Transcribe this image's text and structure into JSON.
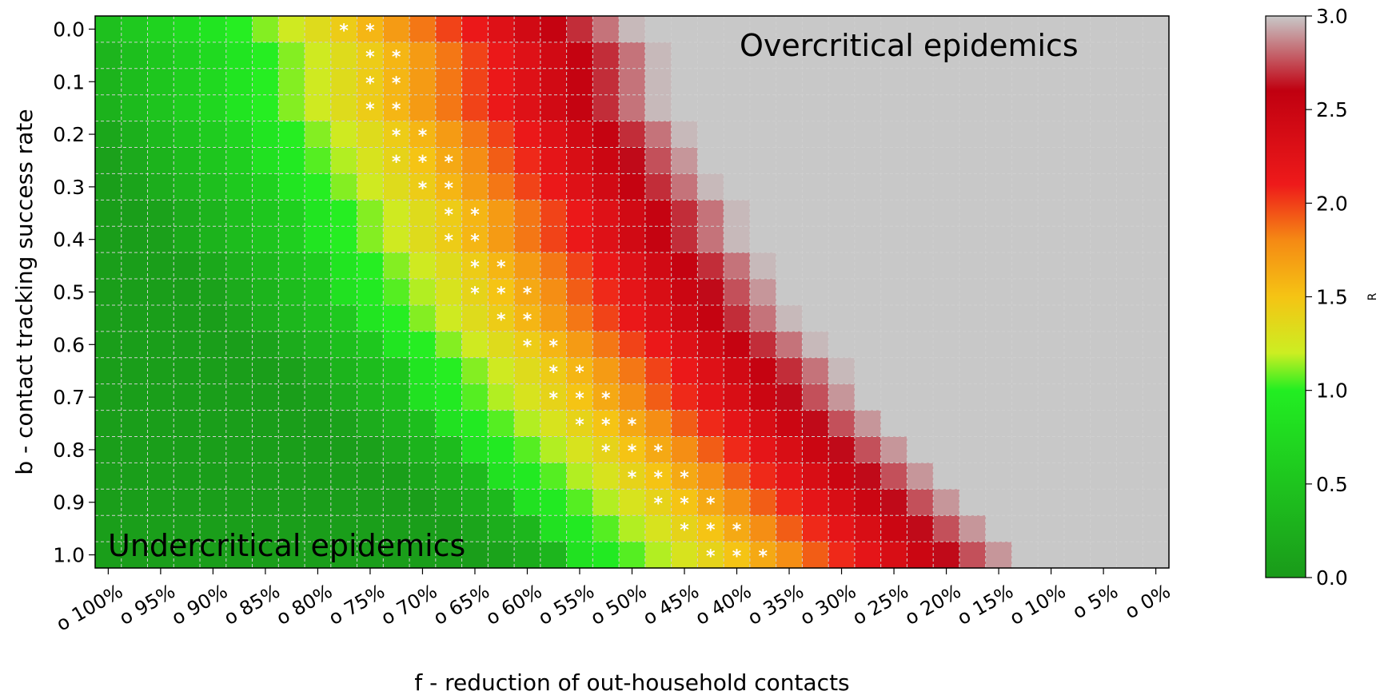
{
  "chart_data": {
    "type": "heatmap",
    "title": "",
    "xlabel": "f - reduction of out-household contacts",
    "ylabel": "b - contact tracking success rate",
    "x_tick_labels": [
      "o 100%",
      "o 95%",
      "o 90%",
      "o 85%",
      "o 80%",
      "o 75%",
      "o 70%",
      "o 65%",
      "o 60%",
      "o 55%",
      "o 50%",
      "o 45%",
      "o 40%",
      "o 35%",
      "o 30%",
      "o 25%",
      "o 20%",
      "o 15%",
      "o 10%",
      "o 5%",
      "o 0%"
    ],
    "x_values": [
      1.0,
      0.95,
      0.9,
      0.85,
      0.8,
      0.75,
      0.7,
      0.65,
      0.6,
      0.55,
      0.5,
      0.45,
      0.4,
      0.35,
      0.3,
      0.25,
      0.2,
      0.15,
      0.1,
      0.05,
      0.0
    ],
    "y_tick_labels": [
      "0.0",
      "0.1",
      "0.2",
      "0.3",
      "0.4",
      "0.5",
      "0.6",
      "0.7",
      "0.8",
      "0.9",
      "1.0"
    ],
    "y_values": [
      0.0,
      0.05,
      0.1,
      0.15,
      0.2,
      0.25,
      0.3,
      0.35,
      0.4,
      0.45,
      0.5,
      0.55,
      0.6,
      0.65,
      0.7,
      0.75,
      0.8,
      0.85,
      0.9,
      0.95,
      1.0
    ],
    "value_range": [
      0.0,
      3.0
    ],
    "colorbar": {
      "label": "R",
      "ticks": [
        "0.0",
        "0.5",
        "1.0",
        "1.5",
        "2.0",
        "2.5",
        "3.0"
      ],
      "colormap_stops": [
        {
          "value": 0.0,
          "color": "#1a9a1a"
        },
        {
          "value": 1.0,
          "color": "#22ee22"
        },
        {
          "value": 1.2,
          "color": "#ccee22"
        },
        {
          "value": 1.5,
          "color": "#f5c414"
        },
        {
          "value": 1.8,
          "color": "#f58a14"
        },
        {
          "value": 2.1,
          "color": "#ee1a1a"
        },
        {
          "value": 2.6,
          "color": "#c00010"
        },
        {
          "value": 3.0,
          "color": "#c8c8c8"
        }
      ]
    },
    "annotations": [
      {
        "text": "Overcritical epidemics",
        "position": "top-right"
      },
      {
        "text": "Undercritical epidemics",
        "position": "bottom-left"
      }
    ],
    "critical_marker": "*",
    "critical_cells": [
      [
        0,
        9
      ],
      [
        0,
        10
      ],
      [
        1,
        10
      ],
      [
        1,
        11
      ],
      [
        2,
        10
      ],
      [
        2,
        11
      ],
      [
        3,
        10
      ],
      [
        3,
        11
      ],
      [
        4,
        11
      ],
      [
        4,
        12
      ],
      [
        5,
        11
      ],
      [
        5,
        12
      ],
      [
        5,
        13
      ],
      [
        6,
        12
      ],
      [
        6,
        13
      ],
      [
        7,
        13
      ],
      [
        7,
        14
      ],
      [
        8,
        13
      ],
      [
        8,
        14
      ],
      [
        9,
        14
      ],
      [
        9,
        15
      ],
      [
        10,
        14
      ],
      [
        10,
        15
      ],
      [
        10,
        16
      ],
      [
        11,
        15
      ],
      [
        11,
        16
      ],
      [
        12,
        16
      ],
      [
        12,
        17
      ],
      [
        13,
        17
      ],
      [
        13,
        18
      ],
      [
        14,
        17
      ],
      [
        14,
        18
      ],
      [
        14,
        19
      ],
      [
        15,
        18
      ],
      [
        15,
        19
      ],
      [
        15,
        20
      ],
      [
        16,
        19
      ],
      [
        16,
        20
      ],
      [
        16,
        21
      ],
      [
        17,
        20
      ],
      [
        17,
        21
      ],
      [
        17,
        22
      ],
      [
        18,
        21
      ],
      [
        18,
        22
      ],
      [
        18,
        23
      ],
      [
        19,
        22
      ],
      [
        19,
        23
      ],
      [
        19,
        24
      ],
      [
        20,
        23
      ],
      [
        20,
        24
      ],
      [
        20,
        25
      ]
    ],
    "grid": true
  }
}
